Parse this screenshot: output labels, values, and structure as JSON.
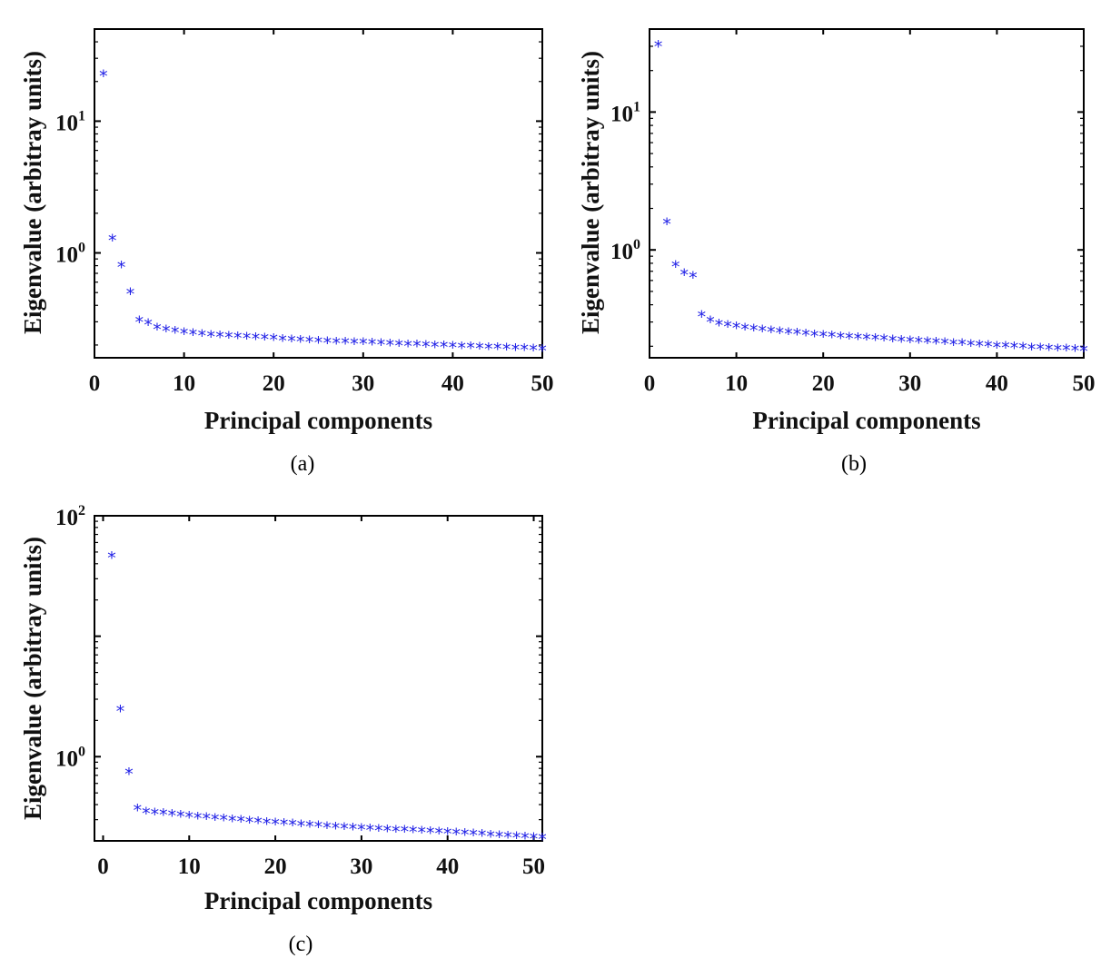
{
  "chart_data": [
    {
      "type": "scatter",
      "panel_label": "(a)",
      "xlabel": "Principal components",
      "ylabel": "Eigenvalue (arbitray units)",
      "yscale": "log",
      "xlim": [
        0,
        50
      ],
      "ylim": [
        0.16,
        50
      ],
      "xticks": [
        0,
        10,
        20,
        30,
        40,
        50
      ],
      "yticks": [
        {
          "base": "10",
          "exp": "0",
          "value": 1
        },
        {
          "base": "10",
          "exp": "1",
          "value": 10
        }
      ],
      "marker": "*",
      "marker_color": "#1f1fe6",
      "x": [
        1,
        2,
        3,
        4,
        5,
        6,
        7,
        8,
        9,
        10,
        11,
        12,
        13,
        14,
        15,
        16,
        17,
        18,
        19,
        20,
        21,
        22,
        23,
        24,
        25,
        26,
        27,
        28,
        29,
        30,
        31,
        32,
        33,
        34,
        35,
        36,
        37,
        38,
        39,
        40,
        41,
        42,
        43,
        44,
        45,
        46,
        47,
        48,
        49,
        50
      ],
      "y": [
        22,
        1.25,
        0.78,
        0.49,
        0.3,
        0.285,
        0.263,
        0.255,
        0.249,
        0.244,
        0.24,
        0.236,
        0.233,
        0.231,
        0.229,
        0.227,
        0.225,
        0.223,
        0.221,
        0.219,
        0.217,
        0.215,
        0.213,
        0.211,
        0.209,
        0.208,
        0.207,
        0.206,
        0.205,
        0.204,
        0.203,
        0.202,
        0.2,
        0.199,
        0.197,
        0.196,
        0.195,
        0.194,
        0.193,
        0.192,
        0.191,
        0.19,
        0.189,
        0.188,
        0.187,
        0.186,
        0.185,
        0.184,
        0.183,
        0.182
      ]
    },
    {
      "type": "scatter",
      "panel_label": "(b)",
      "xlabel": "Principal components",
      "ylabel": "Eigenvalue (arbitray units)",
      "yscale": "log",
      "xlim": [
        0,
        50
      ],
      "ylim": [
        0.165,
        40
      ],
      "xticks": [
        0,
        10,
        20,
        30,
        40,
        50
      ],
      "yticks": [
        {
          "base": "10",
          "exp": "0",
          "value": 1
        },
        {
          "base": "10",
          "exp": "1",
          "value": 10
        }
      ],
      "marker": "*",
      "marker_color": "#1f1fe6",
      "x": [
        1,
        2,
        3,
        4,
        5,
        6,
        7,
        8,
        9,
        10,
        11,
        12,
        13,
        14,
        15,
        16,
        17,
        18,
        19,
        20,
        21,
        22,
        23,
        24,
        25,
        26,
        27,
        28,
        29,
        30,
        31,
        32,
        33,
        34,
        35,
        36,
        37,
        38,
        39,
        40,
        41,
        42,
        43,
        44,
        45,
        46,
        47,
        48,
        49,
        50
      ],
      "y": [
        30,
        1.55,
        0.76,
        0.66,
        0.63,
        0.33,
        0.3,
        0.285,
        0.278,
        0.272,
        0.266,
        0.262,
        0.258,
        0.254,
        0.25,
        0.247,
        0.244,
        0.241,
        0.238,
        0.236,
        0.233,
        0.231,
        0.229,
        0.227,
        0.225,
        0.223,
        0.221,
        0.219,
        0.217,
        0.215,
        0.214,
        0.212,
        0.21,
        0.208,
        0.206,
        0.205,
        0.203,
        0.201,
        0.199,
        0.197,
        0.196,
        0.195,
        0.193,
        0.191,
        0.19,
        0.189,
        0.188,
        0.187,
        0.186,
        0.185
      ]
    },
    {
      "type": "scatter",
      "panel_label": "(c)",
      "xlabel": "Principal components",
      "ylabel": "Eigenvalue (arbitray units)",
      "yscale": "log",
      "xlim": [
        -1,
        51
      ],
      "ylim": [
        0.2,
        100
      ],
      "xticks": [
        0,
        10,
        20,
        30,
        40,
        50
      ],
      "yticks": [
        {
          "base": "10",
          "exp": "0",
          "value": 1
        },
        {
          "base": "10",
          "exp": "2",
          "value": 100
        }
      ],
      "marker": "*",
      "marker_color": "#1f1fe6",
      "x": [
        1,
        2,
        3,
        4,
        5,
        6,
        7,
        8,
        9,
        10,
        11,
        12,
        13,
        14,
        15,
        16,
        17,
        18,
        19,
        20,
        21,
        22,
        23,
        24,
        25,
        26,
        27,
        28,
        29,
        30,
        31,
        32,
        33,
        34,
        35,
        36,
        37,
        38,
        39,
        40,
        41,
        42,
        43,
        44,
        45,
        46,
        47,
        48,
        49,
        50,
        51
      ],
      "y": [
        45,
        2.4,
        0.72,
        0.36,
        0.34,
        0.335,
        0.33,
        0.325,
        0.32,
        0.315,
        0.31,
        0.306,
        0.302,
        0.298,
        0.294,
        0.29,
        0.286,
        0.282,
        0.279,
        0.276,
        0.273,
        0.27,
        0.267,
        0.264,
        0.261,
        0.258,
        0.256,
        0.253,
        0.251,
        0.249,
        0.247,
        0.245,
        0.243,
        0.241,
        0.239,
        0.237,
        0.235,
        0.233,
        0.231,
        0.229,
        0.227,
        0.225,
        0.223,
        0.221,
        0.219,
        0.217,
        0.215,
        0.213,
        0.211,
        0.209,
        0.207
      ]
    }
  ]
}
